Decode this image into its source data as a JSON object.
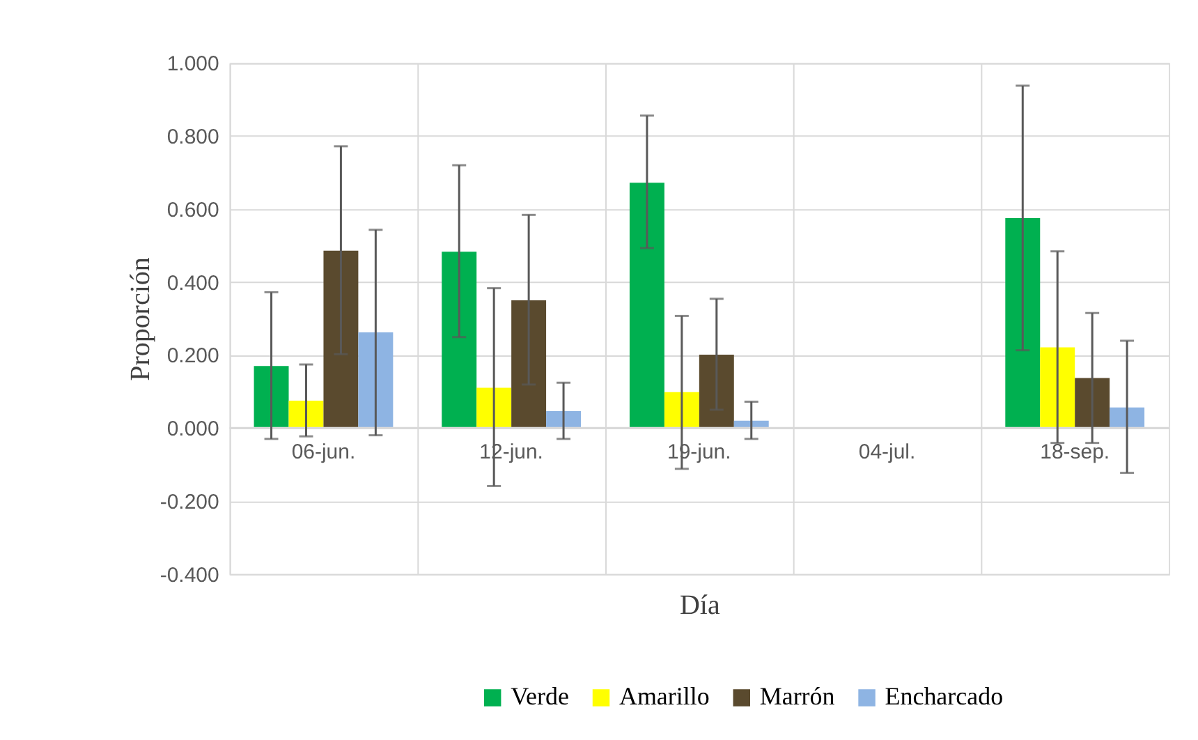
{
  "chart_data": {
    "type": "bar",
    "xlabel": "Día",
    "ylabel": "Proporción",
    "categories": [
      "06-jun.",
      "12-jun.",
      "19-jun.",
      "04-jul.",
      "18-sep."
    ],
    "series": [
      {
        "name": "Verde",
        "color": "#00b050",
        "values": [
          0.17,
          0.483,
          0.672,
          null,
          0.575
        ],
        "errors": [
          [
            -0.03,
            0.372
          ],
          [
            0.249,
            0.72
          ],
          [
            0.493,
            0.856
          ],
          null,
          [
            0.213,
            0.938
          ]
        ]
      },
      {
        "name": "Amarillo",
        "color": "#ffff00",
        "values": [
          0.075,
          0.11,
          0.098,
          null,
          0.221
        ],
        "errors": [
          [
            -0.023,
            0.174
          ],
          [
            -0.159,
            0.383
          ],
          [
            -0.112,
            0.307
          ],
          null,
          [
            -0.041,
            0.484
          ]
        ]
      },
      {
        "name": "Marrón",
        "color": "#5a4a2e",
        "values": [
          0.486,
          0.35,
          0.201,
          null,
          0.137
        ],
        "errors": [
          [
            0.202,
            0.772
          ],
          [
            0.119,
            0.584
          ],
          [
            0.05,
            0.354
          ],
          null,
          [
            -0.041,
            0.315
          ]
        ]
      },
      {
        "name": "Encharcado",
        "color": "#8eb4e3",
        "values": [
          0.262,
          0.046,
          0.02,
          null,
          0.056
        ],
        "errors": [
          [
            -0.02,
            0.543
          ],
          [
            -0.03,
            0.124
          ],
          [
            -0.03,
            0.072
          ],
          null,
          [
            -0.123,
            0.239
          ]
        ]
      }
    ],
    "ylim": [
      -0.4,
      1.0
    ],
    "yticks": [
      {
        "value": -0.4,
        "label": "-0.400"
      },
      {
        "value": -0.2,
        "label": "-0.200"
      },
      {
        "value": 0,
        "label": "0.000"
      },
      {
        "value": 0.2,
        "label": "0.200"
      },
      {
        "value": 0.4,
        "label": "0.400"
      },
      {
        "value": 0.6,
        "label": "0.600"
      },
      {
        "value": 0.8,
        "label": "0.800"
      },
      {
        "value": 1.0,
        "label": "1.000"
      }
    ],
    "grid": true,
    "legend": "bottom"
  }
}
